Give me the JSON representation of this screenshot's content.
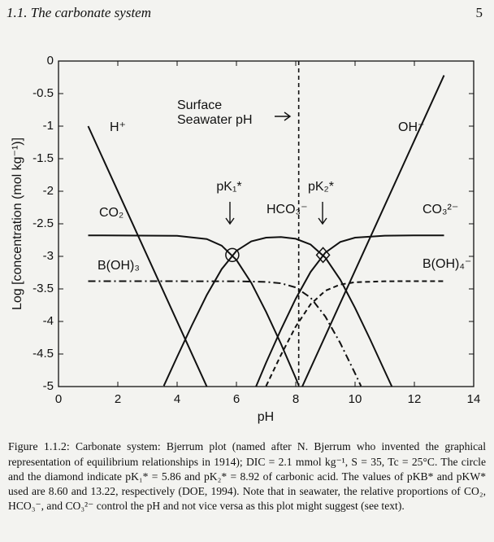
{
  "header": {
    "section": "1.1.  The carbonate system",
    "page": "5"
  },
  "chart_data": {
    "type": "line",
    "xlabel": "pH",
    "ylabel": "Log [concentration (mol kg⁻¹)]",
    "xlim": [
      0,
      14
    ],
    "xticks": [
      0,
      2,
      4,
      6,
      8,
      10,
      12,
      14
    ],
    "ylim": [
      -5,
      0
    ],
    "yticks": [
      0,
      -0.5,
      -1,
      -1.5,
      -2,
      -2.5,
      -3,
      -3.5,
      -4,
      -4.5,
      -5
    ],
    "series": [
      {
        "name": "H⁺",
        "color": "#111111",
        "style": "solid",
        "x": [
          1,
          5
        ],
        "values": [
          -1,
          -5
        ]
      },
      {
        "name": "OH⁻",
        "color": "#111111",
        "style": "solid",
        "x": [
          8.22,
          13
        ],
        "values": [
          -5,
          -0.22
        ]
      },
      {
        "name": "CO₂",
        "color": "#111111",
        "style": "solid",
        "x": [
          1,
          4,
          5,
          5.5,
          6,
          6.5,
          7,
          7.5,
          8,
          8.1
        ],
        "values": [
          -2.678,
          -2.684,
          -2.734,
          -2.835,
          -3.055,
          -3.408,
          -3.853,
          -4.344,
          -4.87,
          -4.981
        ]
      },
      {
        "name": "HCO₃⁻",
        "color": "#111111",
        "style": "solid",
        "x": [
          3.55,
          4,
          4.5,
          5,
          5.5,
          6,
          6.5,
          7,
          7.5,
          8,
          8.5,
          9,
          9.5,
          10,
          10.5,
          11,
          11.24
        ],
        "values": [
          -4.99,
          -4.544,
          -4.056,
          -3.594,
          -3.196,
          -2.915,
          -2.769,
          -2.713,
          -2.704,
          -2.73,
          -2.819,
          -3.021,
          -3.359,
          -3.793,
          -4.269,
          -4.762,
          -5
        ]
      },
      {
        "name": "CO₃²⁻",
        "color": "#111111",
        "style": "solid",
        "x": [
          6.66,
          7,
          7.5,
          8,
          8.5,
          9,
          9.5,
          10,
          11,
          12,
          13
        ],
        "values": [
          -5,
          -4.633,
          -4.124,
          -3.65,
          -3.239,
          -2.941,
          -2.779,
          -2.713,
          -2.682,
          -2.678,
          -2.678
        ]
      },
      {
        "name": "B(OH)₃",
        "color": "#111111",
        "style": "dashdot",
        "x": [
          1,
          6,
          7,
          7.5,
          8,
          8.5,
          9,
          9.5,
          10,
          10.2
        ],
        "values": [
          -3.381,
          -3.382,
          -3.392,
          -3.414,
          -3.478,
          -3.635,
          -3.926,
          -4.332,
          -4.798,
          -4.992
        ]
      },
      {
        "name": "B(OH)₄⁻",
        "color": "#111111",
        "style": "dashed",
        "x": [
          7,
          7.5,
          8,
          8.5,
          9,
          9.5,
          10,
          11,
          12,
          13
        ],
        "values": [
          -4.992,
          -4.515,
          -4.078,
          -3.735,
          -3.527,
          -3.433,
          -3.398,
          -3.383,
          -3.381,
          -3.381
        ]
      }
    ],
    "markers": [
      {
        "label": "pK₁*",
        "shape": "circle",
        "x": 5.86,
        "value": -2.979
      },
      {
        "label": "pK₂*",
        "shape": "diamond",
        "x": 8.92,
        "value": -2.979
      }
    ],
    "vline": 8.1,
    "vline_label": [
      "Surface",
      "Seawater pH"
    ]
  },
  "caption": {
    "label": "Figure 1.1.2:",
    "text": "Carbonate system: Bjerrum plot (named after N. Bjerrum who invented the graphical representation of equilibrium relationships in 1914); DIC = 2.1 mmol kg⁻¹, S = 35, Tc = 25°C. The circle and the diamond indicate pK₁* = 5.86 and pK₂* = 8.92 of carbonic acid. The values of pKB* and pKW* used are 8.60 and 13.22, respectively (DOE, 1994). Note that in seawater, the relative proportions of CO₂, HCO₃⁻, and CO₃²⁻ control the pH and not vice versa as this plot might suggest (see text)."
  }
}
